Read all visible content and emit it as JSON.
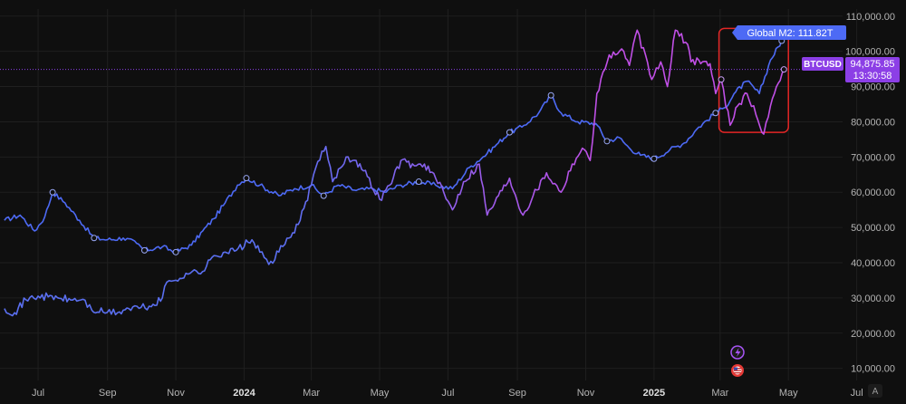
{
  "chart_data": {
    "type": "line",
    "x_axis": {
      "labels": [
        "Jul",
        "Sep",
        "Nov",
        "2024",
        "Mar",
        "May",
        "Jul",
        "Sep",
        "Nov",
        "2025",
        "Mar",
        "May",
        "Jul"
      ],
      "bold_labels": [
        "2024",
        "2025"
      ]
    },
    "y_axis": {
      "range": [
        4000,
        112000
      ],
      "ticks": [
        10000,
        20000,
        30000,
        40000,
        50000,
        60000,
        70000,
        80000,
        90000,
        100000,
        110000
      ],
      "tick_labels": [
        "10,000.00",
        "20,000.00",
        "30,000.00",
        "40,000.00",
        "50,000.00",
        "60,000.00",
        "70,000.00",
        "80,000.00",
        "90,000.00",
        "100,000.00",
        "110,000.00"
      ]
    },
    "series": [
      {
        "key": "btc",
        "color_start": "#5a6ff0",
        "color_end": "#c04fe6",
        "points": [
          [
            "2023-06-01",
            27000
          ],
          [
            "2023-06-10",
            25800
          ],
          [
            "2023-06-20",
            29500
          ],
          [
            "2023-07-01",
            30500
          ],
          [
            "2023-07-10",
            30300
          ],
          [
            "2023-07-20",
            29900
          ],
          [
            "2023-08-01",
            29400
          ],
          [
            "2023-08-10",
            29600
          ],
          [
            "2023-08-18",
            26500
          ],
          [
            "2023-08-28",
            26000
          ],
          [
            "2023-09-10",
            25800
          ],
          [
            "2023-09-20",
            27000
          ],
          [
            "2023-10-01",
            27300
          ],
          [
            "2023-10-10",
            27500
          ],
          [
            "2023-10-20",
            30000
          ],
          [
            "2023-10-24",
            34500
          ],
          [
            "2023-11-01",
            35000
          ],
          [
            "2023-11-10",
            37000
          ],
          [
            "2023-11-25",
            37500
          ],
          [
            "2023-12-05",
            42000
          ],
          [
            "2023-12-15",
            43000
          ],
          [
            "2023-12-25",
            43500
          ],
          [
            "2024-01-08",
            46500
          ],
          [
            "2024-01-15",
            43000
          ],
          [
            "2024-01-23",
            39500
          ],
          [
            "2024-02-01",
            43000
          ],
          [
            "2024-02-10",
            47000
          ],
          [
            "2024-02-20",
            52000
          ],
          [
            "2024-03-01",
            62000
          ],
          [
            "2024-03-05",
            67000
          ],
          [
            "2024-03-14",
            73000
          ],
          [
            "2024-03-20",
            63000
          ],
          [
            "2024-04-01",
            70000
          ],
          [
            "2024-04-10",
            69000
          ],
          [
            "2024-04-20",
            64500
          ],
          [
            "2024-05-01",
            58000
          ],
          [
            "2024-05-10",
            62000
          ],
          [
            "2024-05-20",
            69000
          ],
          [
            "2024-06-01",
            67500
          ],
          [
            "2024-06-10",
            68000
          ],
          [
            "2024-06-20",
            64000
          ],
          [
            "2024-07-05",
            55000
          ],
          [
            "2024-07-15",
            63000
          ],
          [
            "2024-07-29",
            68000
          ],
          [
            "2024-08-05",
            53500
          ],
          [
            "2024-08-15",
            59000
          ],
          [
            "2024-08-25",
            64000
          ],
          [
            "2024-09-06",
            53500
          ],
          [
            "2024-09-15",
            59000
          ],
          [
            "2024-09-27",
            65500
          ],
          [
            "2024-10-10",
            60000
          ],
          [
            "2024-10-20",
            68000
          ],
          [
            "2024-10-29",
            72500
          ],
          [
            "2024-11-05",
            69000
          ],
          [
            "2024-11-11",
            88000
          ],
          [
            "2024-11-22",
            99000
          ],
          [
            "2024-12-05",
            100000
          ],
          [
            "2024-12-10",
            96000
          ],
          [
            "2024-12-17",
            106000
          ],
          [
            "2024-12-30",
            92000
          ],
          [
            "2025-01-07",
            97000
          ],
          [
            "2025-01-13",
            90000
          ],
          [
            "2025-01-20",
            106000
          ],
          [
            "2025-01-31",
            102000
          ],
          [
            "2025-02-03",
            97000
          ],
          [
            "2025-02-10",
            97500
          ],
          [
            "2025-02-20",
            96500
          ],
          [
            "2025-02-25",
            88000
          ],
          [
            "2025-03-02",
            92000
          ],
          [
            "2025-03-10",
            79000
          ],
          [
            "2025-03-15",
            84000
          ],
          [
            "2025-03-25",
            88000
          ],
          [
            "2025-04-02",
            82000
          ],
          [
            "2025-04-09",
            76500
          ],
          [
            "2025-04-15",
            84500
          ],
          [
            "2025-04-22",
            91000
          ],
          [
            "2025-04-27",
            94875
          ]
        ]
      },
      {
        "key": "m2",
        "color": "#4d6af5",
        "points": [
          [
            "2023-06-01",
            52000
          ],
          [
            "2023-06-15",
            53500
          ],
          [
            "2023-06-28",
            49000
          ],
          [
            "2023-07-07",
            53000
          ],
          [
            "2023-07-14",
            60000
          ],
          [
            "2023-07-25",
            57000
          ],
          [
            "2023-08-07",
            52000
          ],
          [
            "2023-08-20",
            47000
          ],
          [
            "2023-09-01",
            46500
          ],
          [
            "2023-09-15",
            47000
          ],
          [
            "2023-09-27",
            45500
          ],
          [
            "2023-10-04",
            43500
          ],
          [
            "2023-10-20",
            44500
          ],
          [
            "2023-11-01",
            43000
          ],
          [
            "2023-11-15",
            45000
          ],
          [
            "2023-11-25",
            49000
          ],
          [
            "2023-12-05",
            52500
          ],
          [
            "2023-12-15",
            57000
          ],
          [
            "2023-12-26",
            62000
          ],
          [
            "2024-01-03",
            64000
          ],
          [
            "2024-01-15",
            62000
          ],
          [
            "2024-02-01",
            59000
          ],
          [
            "2024-02-15",
            61000
          ],
          [
            "2024-03-01",
            62000
          ],
          [
            "2024-03-12",
            59000
          ],
          [
            "2024-03-25",
            62000
          ],
          [
            "2024-04-10",
            60500
          ],
          [
            "2024-04-25",
            61000
          ],
          [
            "2024-05-05",
            60000
          ],
          [
            "2024-05-20",
            62000
          ],
          [
            "2024-06-05",
            63000
          ],
          [
            "2024-06-20",
            62000
          ],
          [
            "2024-07-05",
            61000
          ],
          [
            "2024-07-20",
            67000
          ],
          [
            "2024-08-05",
            71000
          ],
          [
            "2024-08-15",
            74000
          ],
          [
            "2024-08-25",
            77000
          ],
          [
            "2024-09-05",
            78500
          ],
          [
            "2024-09-20",
            82500
          ],
          [
            "2024-10-01",
            87500
          ],
          [
            "2024-10-10",
            82500
          ],
          [
            "2024-10-25",
            80000
          ],
          [
            "2024-11-10",
            79500
          ],
          [
            "2024-11-20",
            74500
          ],
          [
            "2024-12-01",
            75500
          ],
          [
            "2024-12-10",
            72500
          ],
          [
            "2024-12-20",
            70500
          ],
          [
            "2025-01-01",
            69500
          ],
          [
            "2025-01-15",
            72000
          ],
          [
            "2025-01-28",
            74000
          ],
          [
            "2025-02-10",
            78500
          ],
          [
            "2025-02-25",
            82500
          ],
          [
            "2025-03-05",
            84000
          ],
          [
            "2025-03-15",
            88500
          ],
          [
            "2025-03-25",
            91500
          ],
          [
            "2025-04-05",
            88000
          ],
          [
            "2025-04-15",
            97500
          ],
          [
            "2025-04-25",
            103000
          ],
          [
            "2025-04-28",
            104000
          ]
        ]
      }
    ],
    "hline": 94875.85,
    "markers_m2": [
      "2023-07-14",
      "2023-08-20",
      "2023-10-04",
      "2023-11-01",
      "2024-01-03",
      "2024-03-12",
      "2024-06-05",
      "2024-08-25",
      "2024-10-01",
      "2024-11-20",
      "2025-01-01",
      "2025-02-25",
      "2025-04-25"
    ],
    "markers_btc": [
      "2025-03-02",
      "2025-04-27"
    ],
    "highlight_box": {
      "x_from": "2025-02-28",
      "x_to": "2025-05-01",
      "y_from": 77000,
      "y_to": 106500,
      "color": "#e32626"
    },
    "labels": {
      "m2_tag": "Global M2: 111.82T",
      "btc_tag": "BTCUSD",
      "btc_price": "94,875.85",
      "btc_timer": "13:30:58",
      "auto_button": "A"
    },
    "colors": {
      "background": "#0f0f0f",
      "grid": "#1f1f1f",
      "axis_text": "#b4b4b4",
      "m2_tag": "#4d6af5",
      "btc_tag": "#8c3fe6"
    }
  }
}
